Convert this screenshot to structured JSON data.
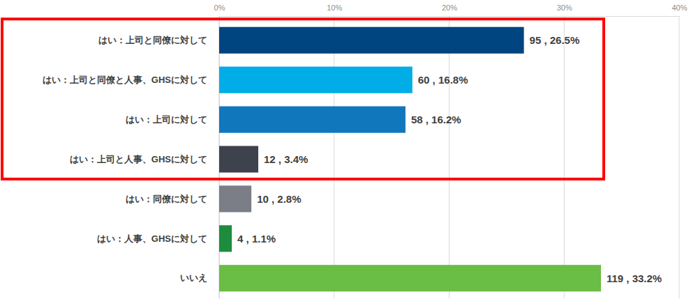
{
  "chart_data": {
    "type": "bar",
    "orientation": "horizontal",
    "categories": [
      "はい：上司と同僚に対して",
      "はい：上司と同僚と人事、GHSに対して",
      "はい：上司に対して",
      "はい：上司と人事、GHSに対して",
      "はい：同僚に対して",
      "はい：人事、GHSに対して",
      "いいえ"
    ],
    "values": [
      26.5,
      16.8,
      16.2,
      3.4,
      2.8,
      1.1,
      33.2
    ],
    "value_labels": [
      "95 , 26.5%",
      "60 , 16.8%",
      "58 , 16.2%",
      "12 , 3.4%",
      "10 , 2.8%",
      "4 , 1.1%",
      "119 , 33.2%"
    ],
    "colors": [
      "#00457f",
      "#00ade6",
      "#1177bd",
      "#3e424c",
      "#7b7e86",
      "#1e8c3e",
      "#6abd45"
    ],
    "xlim": [
      0,
      40
    ],
    "xticks": [
      {
        "value": 0,
        "label": "0%"
      },
      {
        "value": 10,
        "label": "10%"
      },
      {
        "value": 20,
        "label": "20%"
      },
      {
        "value": 30,
        "label": "30%"
      },
      {
        "value": 40,
        "label": "40%"
      }
    ],
    "grid": true,
    "data_labels": true
  }
}
